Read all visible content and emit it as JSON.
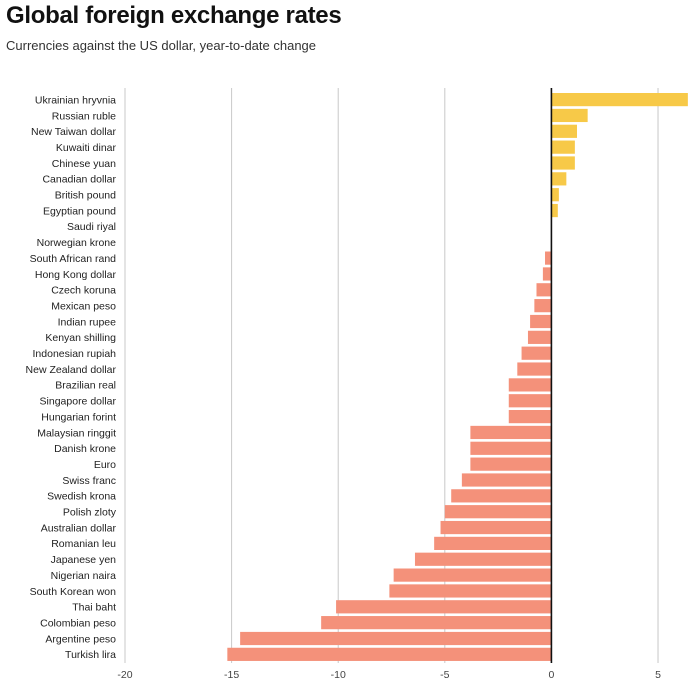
{
  "header": {
    "title": "Global foreign exchange rates",
    "subtitle": "Currencies against the US dollar, year-to-date change"
  },
  "chart_data": {
    "type": "bar",
    "orientation": "horizontal",
    "title": "Global foreign exchange rates",
    "subtitle": "Currencies against the US dollar, year-to-date change",
    "xlabel": "",
    "ylabel": "",
    "xlim": [
      -20,
      6.5
    ],
    "xticks": [
      -20,
      -15,
      -10,
      -5,
      0,
      5
    ],
    "grid": true,
    "positive_color": "#f7c948",
    "negative_color": "#f4917a",
    "zero_line_color": "#111111",
    "categories": [
      "Ukrainian hryvnia",
      "Russian ruble",
      "New Taiwan dollar",
      "Kuwaiti dinar",
      "Chinese yuan",
      "Canadian dollar",
      "British pound",
      "Egyptian pound",
      "Saudi riyal",
      "Norwegian krone",
      "South African rand",
      "Hong Kong dollar",
      "Czech koruna",
      "Mexican peso",
      "Indian rupee",
      "Kenyan shilling",
      "Indonesian rupiah",
      "New Zealand dollar",
      "Brazilian real",
      "Singapore dollar",
      "Hungarian forint",
      "Malaysian ringgit",
      "Danish krone",
      "Euro",
      "Swiss franc",
      "Swedish krona",
      "Polish zloty",
      "Australian dollar",
      "Romanian leu",
      "Japanese yen",
      "Nigerian naira",
      "South Korean won",
      "Thai baht",
      "Colombian peso",
      "Argentine peso",
      "Turkish lira"
    ],
    "values": [
      6.4,
      1.7,
      1.2,
      1.1,
      1.1,
      0.7,
      0.35,
      0.3,
      0.0,
      0.0,
      -0.3,
      -0.4,
      -0.7,
      -0.8,
      -1.0,
      -1.1,
      -1.4,
      -1.6,
      -2.0,
      -2.0,
      -2.0,
      -3.8,
      -3.8,
      -3.8,
      -4.2,
      -4.7,
      -5.0,
      -5.2,
      -5.5,
      -6.4,
      -7.4,
      -7.6,
      -10.1,
      -10.8,
      -14.6,
      -15.2
    ]
  }
}
